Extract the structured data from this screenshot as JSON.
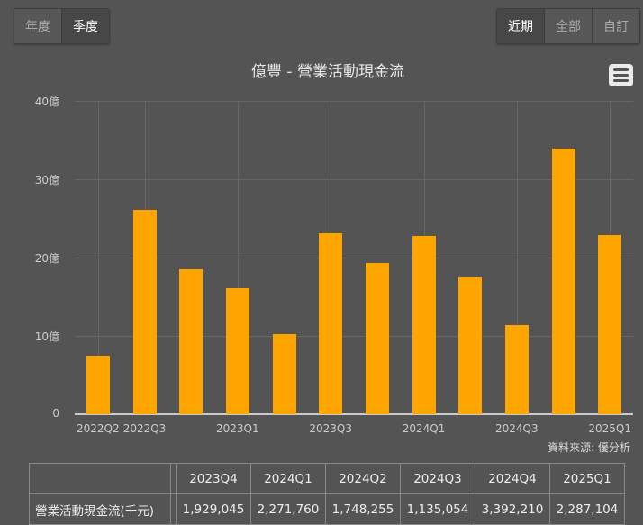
{
  "period_toggle": {
    "options": [
      "年度",
      "季度"
    ],
    "active": "季度"
  },
  "range_toggle": {
    "options": [
      "近期",
      "全部",
      "自訂"
    ],
    "active": "近期"
  },
  "menu_icon": "hamburger-menu-icon",
  "chart_data": {
    "type": "bar",
    "title": "億豐 - 營業活動現金流",
    "xlabel": "",
    "ylabel": "",
    "unit": "億",
    "ylim": [
      0,
      40
    ],
    "yticks": [
      "0",
      "10億",
      "20億",
      "30億",
      "40億"
    ],
    "categories": [
      "2022Q2",
      "2022Q3",
      "2022Q4",
      "2023Q1",
      "2023Q2",
      "2023Q3",
      "2023Q4",
      "2024Q1",
      "2024Q2",
      "2024Q3",
      "2024Q4",
      "2025Q1"
    ],
    "visible_xtick_labels": [
      "2022Q2",
      "2022Q3",
      "2023Q1",
      "2023Q3",
      "2024Q1",
      "2024Q3",
      "2025Q1"
    ],
    "values": [
      7.5,
      26.1,
      18.5,
      16.1,
      10.2,
      23.1,
      19.29,
      22.72,
      17.48,
      11.35,
      33.92,
      22.87
    ],
    "bar_color": "#ffa500",
    "grid": true,
    "legend": null
  },
  "source_text": "資料來源: 優分析",
  "table": {
    "headers": [
      "2023Q4",
      "2024Q1",
      "2024Q2",
      "2024Q3",
      "2024Q4",
      "2025Q1"
    ],
    "rows": [
      {
        "label": "營業活動現金流(千元)",
        "values": [
          "1,929,045",
          "2,271,760",
          "1,748,255",
          "1,135,054",
          "3,392,210",
          "2,287,104"
        ]
      }
    ]
  }
}
